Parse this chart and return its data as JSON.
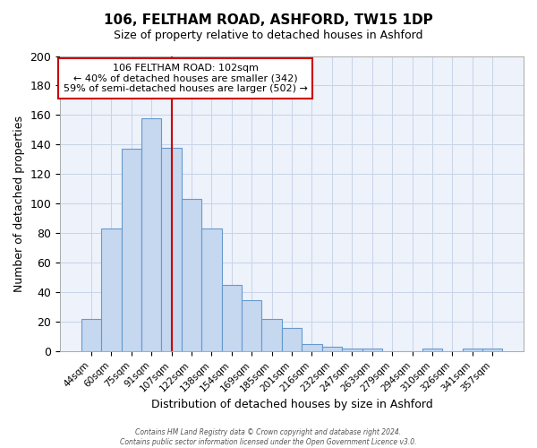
{
  "title1": "106, FELTHAM ROAD, ASHFORD, TW15 1DP",
  "title2": "Size of property relative to detached houses in Ashford",
  "xlabel": "Distribution of detached houses by size in Ashford",
  "ylabel": "Number of detached properties",
  "bar_labels": [
    "44sqm",
    "60sqm",
    "75sqm",
    "91sqm",
    "107sqm",
    "122sqm",
    "138sqm",
    "154sqm",
    "169sqm",
    "185sqm",
    "201sqm",
    "216sqm",
    "232sqm",
    "247sqm",
    "263sqm",
    "279sqm",
    "294sqm",
    "310sqm",
    "326sqm",
    "341sqm",
    "357sqm"
  ],
  "bar_values": [
    22,
    83,
    137,
    158,
    138,
    103,
    83,
    45,
    35,
    22,
    16,
    5,
    3,
    2,
    2,
    0,
    0,
    2,
    0,
    2,
    2
  ],
  "bar_color": "#c5d8f0",
  "bar_edge_color": "#6699cc",
  "marker_index": 4,
  "marker_color": "#cc0000",
  "annotation_title": "106 FELTHAM ROAD: 102sqm",
  "annotation_line1": "← 40% of detached houses are smaller (342)",
  "annotation_line2": "59% of semi-detached houses are larger (502) →",
  "annotation_box_color": "#ffffff",
  "annotation_box_edge": "#cc0000",
  "plot_bg_color": "#edf2fb",
  "ylim": [
    0,
    200
  ],
  "yticks": [
    0,
    20,
    40,
    60,
    80,
    100,
    120,
    140,
    160,
    180,
    200
  ],
  "footer1": "Contains HM Land Registry data © Crown copyright and database right 2024.",
  "footer2": "Contains public sector information licensed under the Open Government Licence v3.0."
}
